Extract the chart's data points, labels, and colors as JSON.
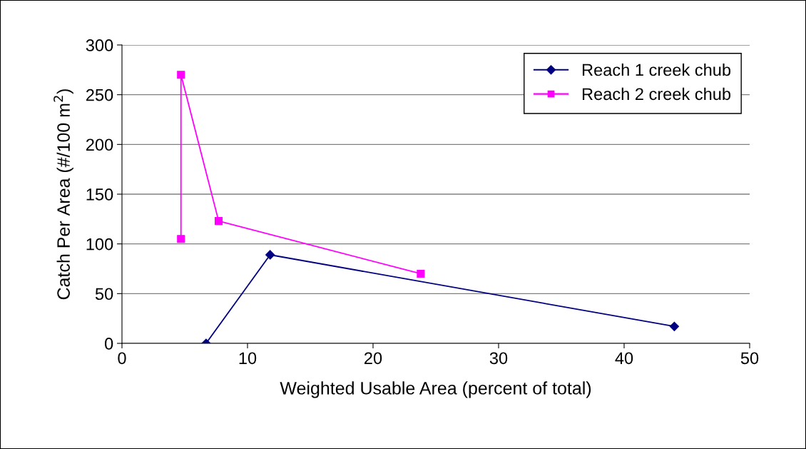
{
  "chart_data": {
    "type": "line",
    "xlabel": "Weighted Usable Area (percent of total)",
    "ylabel": "Catch Per Area (#/100 m$^{2}$)",
    "series": [
      {
        "name": "Reach 1 creek chub",
        "color": "#000080",
        "marker": "diamond",
        "x": [
          6.7,
          11.8,
          44.0
        ],
        "values": [
          0,
          89,
          17
        ]
      },
      {
        "name": "Reach 2 creek chub",
        "color": "#ff00ff",
        "marker": "square",
        "x": [
          4.7,
          4.7,
          7.7,
          23.8
        ],
        "values": [
          105,
          270,
          123,
          70
        ]
      }
    ],
    "xlim": [
      0,
      50
    ],
    "xticks": [
      0,
      10,
      20,
      30,
      40,
      50
    ],
    "ylim": [
      0,
      300
    ],
    "yticks": [
      0,
      50,
      100,
      150,
      200,
      250,
      300
    ],
    "grid": "y",
    "legend": "top right",
    "line_style": "solid"
  }
}
